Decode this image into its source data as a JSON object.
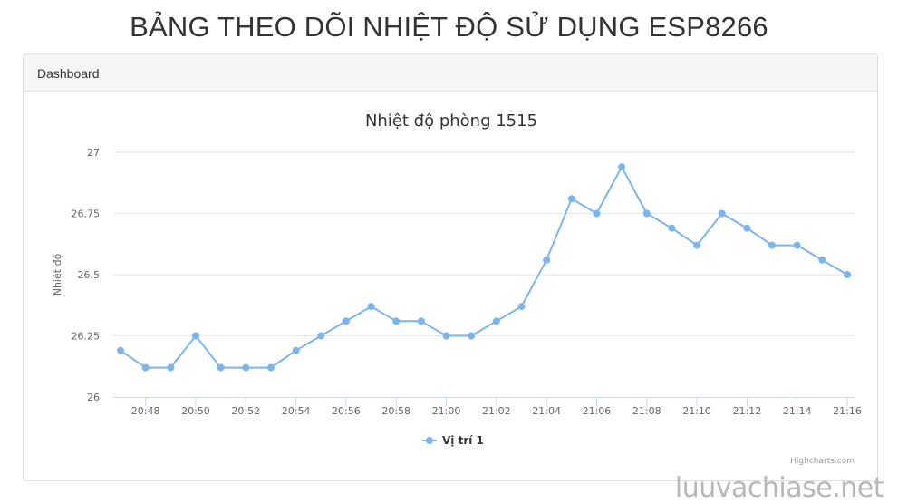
{
  "page": {
    "title": "BẢNG THEO DÕI NHIỆT ĐỘ SỬ DỤNG ESP8266",
    "watermark": "luuvachiase.net"
  },
  "panel": {
    "heading": "Dashboard"
  },
  "chart_data": {
    "type": "line",
    "title": "Nhiệt độ phòng 1515",
    "xlabel": "",
    "ylabel": "Nhiệt độ",
    "credits": "Highcharts.com",
    "ylim": [
      26,
      27
    ],
    "yticks": [
      "26",
      "26.25",
      "26.5",
      "26.75",
      "27"
    ],
    "xticks": [
      "20:48",
      "20:50",
      "20:52",
      "20:54",
      "20:56",
      "20:58",
      "21:00",
      "21:02",
      "21:04",
      "21:06",
      "21:08",
      "21:10",
      "21:12",
      "21:14",
      "21:16"
    ],
    "series_color": "#7cb5ec",
    "legend_position": "bottom-center",
    "grid": true,
    "series": [
      {
        "name": "Vị trí 1",
        "x": [
          "20:47",
          "20:48",
          "20:49",
          "20:50",
          "20:51",
          "20:52",
          "20:53",
          "20:54",
          "20:55",
          "20:56",
          "20:57",
          "20:58",
          "20:59",
          "21:00",
          "21:01",
          "21:02",
          "21:03",
          "21:04",
          "21:05",
          "21:06",
          "21:07",
          "21:08",
          "21:09",
          "21:10",
          "21:11",
          "21:12",
          "21:13",
          "21:14",
          "21:15",
          "21:16"
        ],
        "values": [
          26.19,
          26.12,
          26.12,
          26.25,
          26.12,
          26.12,
          26.12,
          26.19,
          26.25,
          26.31,
          26.37,
          26.31,
          26.31,
          26.25,
          26.25,
          26.31,
          26.37,
          26.56,
          26.81,
          26.75,
          26.94,
          26.75,
          26.69,
          26.62,
          26.75,
          26.69,
          26.62,
          26.62,
          26.56,
          26.5
        ]
      }
    ]
  }
}
